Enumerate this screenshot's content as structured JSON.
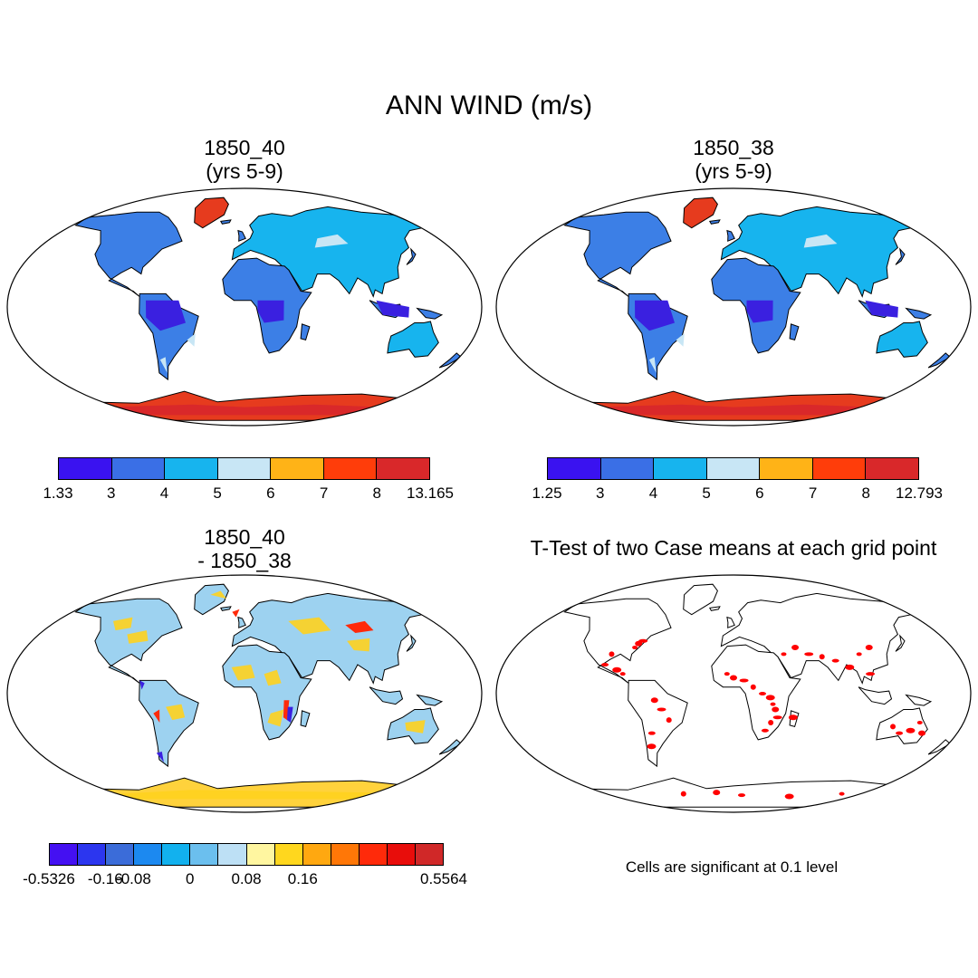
{
  "title": "ANN WIND (m/s)",
  "panels": [
    {
      "title": "1850_40\n(yrs 5-9)"
    },
    {
      "title": "1850_38\n(yrs 5-9)"
    },
    {
      "title": "1850_40\n- 1850_38"
    },
    {
      "title": "T-Test of two Case means at each grid point"
    }
  ],
  "colorbars": [
    {
      "colors": [
        "#3a12f0",
        "#3a6fe6",
        "#17b4ee",
        "#c8e6f5",
        "#ffb317",
        "#ff3d0a",
        "#d9282a"
      ],
      "labels": [
        "1.33",
        "3",
        "4",
        "5",
        "6",
        "7",
        "8",
        "13.165"
      ]
    },
    {
      "colors": [
        "#3a12f0",
        "#3a6fe6",
        "#17b4ee",
        "#c8e6f5",
        "#ffb317",
        "#ff3d0a",
        "#d9282a"
      ],
      "labels": [
        "1.25",
        "3",
        "4",
        "5",
        "6",
        "7",
        "8",
        "12.793"
      ]
    },
    {
      "colors": [
        "#4410f2",
        "#2c36ef",
        "#3b6cd9",
        "#1c89f0",
        "#12b1ee",
        "#6bbfee",
        "#bde0f5",
        "#fff6a0",
        "#ffd71e",
        "#ffa810",
        "#ff7707",
        "#ff2a0a",
        "#e80d0b",
        "#d02828"
      ],
      "labels": [
        "-0.5326",
        "",
        "-0.16",
        "-0.08",
        "",
        "0",
        "",
        "0.08",
        "",
        "0.16",
        "",
        "",
        "",
        "",
        "0.5564"
      ]
    }
  ],
  "note": "Cells are significant at 0.1 level",
  "style": {
    "land_main": "#3c7fe6",
    "land_light": "#17b4ee",
    "land_deep": "#3a20e0",
    "antarctic": "#e63b1e",
    "diff_land": "#9dd2f0",
    "sig": "#ff0000"
  }
}
